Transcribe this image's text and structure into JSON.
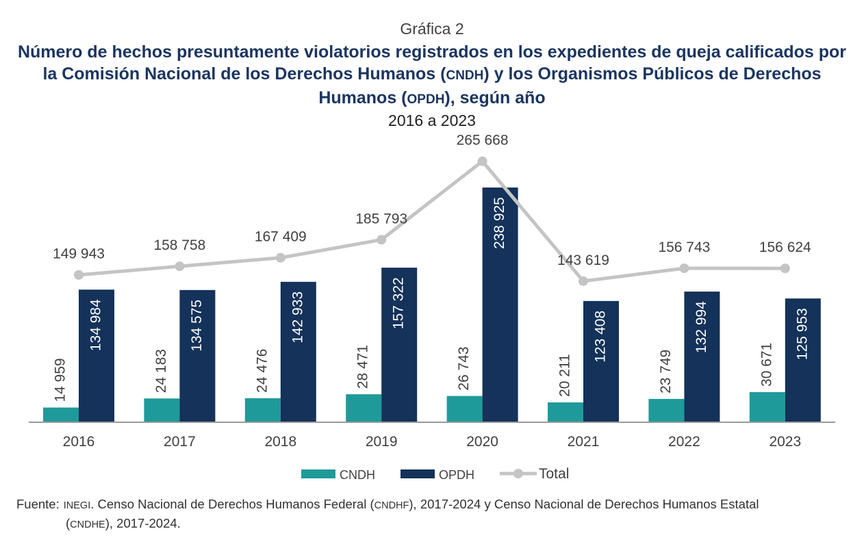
{
  "header": {
    "kicker": "Gráfica 2",
    "title_part1": "Número de hechos presuntamente violatorios registrados en los expedientes de queja calificados por la Comisión Nacional de los Derechos Humanos (",
    "title_abbr1": "CNDH",
    "title_part2": ") y los Organismos Públicos de Derechos Humanos (",
    "title_abbr2": "OPDH",
    "title_part3": "), según año",
    "subtitle": "2016 a 2023"
  },
  "colors": {
    "cndh": "#1f9a9a",
    "opdh": "#14325a",
    "total": "#c4c4c4",
    "axis": "#9a9a9a",
    "label_dark": "#404040",
    "label_light": "#ffffff"
  },
  "chart_data": {
    "type": "bar",
    "categories": [
      "2016",
      "2017",
      "2018",
      "2019",
      "2020",
      "2021",
      "2022",
      "2023"
    ],
    "series": [
      {
        "name": "CNDH",
        "kind": "bar",
        "values": [
          14959,
          24183,
          24476,
          28471,
          26743,
          20211,
          23749,
          30671
        ],
        "labels": [
          "14 959",
          "24 183",
          "24 476",
          "28 471",
          "26 743",
          "20 211",
          "23 749",
          "30 671"
        ]
      },
      {
        "name": "OPDH",
        "kind": "bar",
        "values": [
          134984,
          134575,
          142933,
          157322,
          238925,
          123408,
          132994,
          125953
        ],
        "labels": [
          "134 984",
          "134 575",
          "142 933",
          "157 322",
          "238 925",
          "123 408",
          "132 994",
          "125 953"
        ]
      },
      {
        "name": "Total",
        "kind": "line",
        "values": [
          149943,
          158758,
          167409,
          185793,
          265668,
          143619,
          156743,
          156624
        ],
        "labels": [
          "149 943",
          "158 758",
          "167 409",
          "185 793",
          "265 668",
          "143 619",
          "156 743",
          "156 624"
        ]
      }
    ],
    "ylim": [
      0,
      270000
    ],
    "title": "Número de hechos presuntamente violatorios registrados en los expedientes de queja calificados por la Comisión Nacional de los Derechos Humanos (CNDH) y los Organismos Públicos de Derechos Humanos (OPDH), según año",
    "subtitle": "2016 a 2023",
    "xlabel": "",
    "ylabel": "",
    "legend": [
      "CNDH",
      "OPDH",
      "Total"
    ],
    "legend_position": "bottom",
    "grid": false
  },
  "source": {
    "label": "Fuente:",
    "abbr_inegi": "INEGI",
    "text1": ". Censo Nacional de Derechos Humanos Federal (",
    "abbr_cndhf": "CNDHF",
    "text2": "), 2017-2024 y Censo Nacional de Derechos Humanos Estatal",
    "text3": "(",
    "abbr_cndhe": "CNDHE",
    "text4": "), 2017-2024."
  }
}
